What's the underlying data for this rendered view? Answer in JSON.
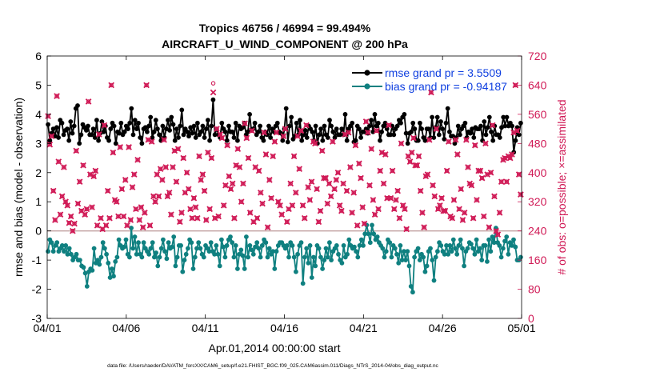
{
  "chart_data": {
    "type": "line",
    "title": "Tropics 46756 / 46994 = 99.494%",
    "subtitle": "AIRCRAFT_U_WIND_COMPONENT @ 200 hPa",
    "xlabel": "Apr.01,2014 00:00:00 start",
    "ylabel_left": "rmse and bias (model - observation)",
    "ylabel_right": "# of obs: o=possible; ×=assimilated",
    "footer": "data file: /Users/raeder/DAI/ATM_forcXX/CAM6_setup/f.e21.FHIST_BGC.f09_025.CAM6assim.011/Diags_NTrS_2014-04/obs_diag_output.nc",
    "xlim": [
      0,
      30
    ],
    "ylim_left": [
      -3,
      6
    ],
    "ylim_right": [
      0,
      720
    ],
    "x_ticks": [
      0,
      5,
      10,
      15,
      20,
      25,
      30
    ],
    "x_tick_labels": [
      "04/01",
      "04/06",
      "04/11",
      "04/16",
      "04/21",
      "04/26",
      "05/01"
    ],
    "y_ticks_left": [
      -3,
      -2,
      -1,
      0,
      1,
      2,
      3,
      4,
      5,
      6
    ],
    "y_tick_labels_left": [
      "-3",
      "-2",
      "-1",
      "0",
      "1",
      "2",
      "3",
      "4",
      "5",
      "6"
    ],
    "y_ticks_right": [
      0,
      80,
      160,
      240,
      320,
      400,
      480,
      560,
      640,
      720
    ],
    "y_tick_labels_right": [
      "0",
      "80",
      "160",
      "240",
      "320",
      "400",
      "480",
      "560",
      "640",
      "720"
    ],
    "colors": {
      "rmse": "#000000",
      "bias": "#0f8080",
      "obs": "#d01a56",
      "zero_line": "#c4a4a4",
      "legend_text": "#1040e0",
      "right_axis": "#d01a56"
    },
    "legend": {
      "rmse_label": "rmse grand pr = 3.5509",
      "bias_label": "bias grand pr = -0.94187",
      "position": "top-right"
    },
    "series": [
      {
        "name": "rmse",
        "axis": "left",
        "values": [
          3.65,
          3.1,
          3.35,
          3.5,
          3.25,
          3.55,
          3.2,
          3.8,
          3.7,
          3.3,
          3.45,
          3.5,
          3.1,
          3.75,
          3.35,
          3.6,
          4.2,
          4.3,
          3.0,
          3.3,
          3.65,
          3.55,
          3.45,
          3.6,
          3.3,
          3.3,
          3.5,
          3.2,
          3.8,
          3.1,
          3.35,
          3.75,
          3.4,
          3.6,
          3.2,
          3.1,
          3.5,
          3.7,
          3.6,
          3.0,
          3.4,
          3.35,
          3.7,
          3.3,
          3.4,
          3.6,
          3.5,
          3.7,
          4.2,
          3.3,
          3.8,
          3.5,
          3.7,
          3.2,
          3.0,
          3.5,
          3.55,
          3.4,
          3.6,
          3.9,
          3.2,
          3.4,
          3.8,
          3.5,
          3.3,
          3.1,
          3.6,
          3.2,
          3.5,
          3.8,
          3.45,
          3.9,
          3.65,
          3.1,
          3.5,
          3.2,
          3.6,
          4.15,
          3.3,
          3.5,
          3.4,
          3.25,
          3.55,
          3.35,
          3.6,
          3.2,
          3.7,
          3.3,
          3.4,
          3.6,
          3.2,
          3.5,
          3.8,
          3.1,
          3.6,
          4.5,
          3.3,
          3.5,
          3.3,
          3.2,
          3.7,
          3.5,
          3.4,
          3.1,
          3.6,
          3.4,
          3.4,
          3.2,
          3.7,
          3.1,
          3.6,
          3.5,
          3.55,
          3.7,
          3.3,
          3.4,
          4.0,
          3.45,
          3.5,
          3.7,
          3.3,
          3.4,
          3.6,
          3.2,
          3.1,
          3.4,
          3.3,
          3.6,
          3.2,
          3.5,
          3.4,
          3.6,
          3.7,
          3.4,
          3.35,
          3.1,
          3.5,
          4.2,
          3.05,
          3.6,
          3.9,
          3.15,
          3.25,
          3.7,
          3.3,
          3.8,
          3.1,
          3.3,
          3.45,
          3.2,
          3.6,
          3.5,
          3.4,
          3.1,
          3.6,
          3.0,
          3.3,
          3.5,
          3.1,
          3.6,
          3.3,
          3.2,
          3.8,
          3.6,
          3.4,
          3.2,
          3.5,
          3.3,
          3.3,
          3.5,
          3.3,
          4.0,
          3.1,
          3.5,
          3.6,
          3.7,
          3.05,
          3.1,
          3.6,
          3.5,
          3.2,
          3.4,
          3.4,
          3.5,
          3.35,
          3.6,
          3.8,
          3.4,
          4.0,
          3.6,
          3.7,
          3.1,
          3.4,
          3.6,
          3.7,
          3.5,
          3.3,
          3.3,
          3.6,
          3.3,
          3.5,
          3.6,
          3.8,
          3.7,
          3.9,
          4.0,
          3.35,
          3.0,
          3.35,
          3.4,
          3.7,
          3.5,
          3.1,
          3.1,
          3.7,
          3.5,
          3.2,
          3.1,
          3.5,
          3.5,
          3.2,
          3.9,
          3.2,
          3.55,
          3.9,
          3.3,
          3.75,
          3.5,
          3.15,
          3.7,
          4.2,
          3.4,
          3.25,
          3.25,
          3.0,
          3.2,
          3.6,
          3.3,
          3.5,
          3.6,
          3.7,
          3.2,
          3.4,
          3.35,
          3.5,
          3.2,
          3.55,
          3.5,
          3.5,
          3.6,
          3.1,
          3.75,
          3.3,
          3.55,
          3.9,
          3.4,
          3.1,
          3.6,
          3.3,
          3.3,
          3.2,
          3.55,
          3.9,
          3.6,
          3.9,
          3.6,
          3.7,
          3.6,
          2.7,
          3.1,
          3.55,
          3.3,
          3.7
        ]
      },
      {
        "name": "bias",
        "axis": "left",
        "values": [
          -0.7,
          -0.3,
          -0.4,
          -0.7,
          -0.5,
          -0.4,
          -0.7,
          -0.6,
          -0.5,
          -0.7,
          -0.5,
          -0.8,
          -0.6,
          -0.8,
          -1.0,
          -0.9,
          -0.8,
          -1.0,
          -1.0,
          -1.2,
          -1.25,
          -1.45,
          -1.9,
          -1.4,
          -1.3,
          -1.35,
          -0.6,
          -1.1,
          -1.0,
          -1.15,
          -0.9,
          -0.4,
          -0.6,
          -0.8,
          -1.1,
          -1.6,
          -1.3,
          -1.55,
          -1.05,
          -0.9,
          -0.3,
          -0.5,
          -0.6,
          -0.55,
          -0.3,
          -0.8,
          -0.9,
          0.1,
          -0.6,
          -0.2,
          -0.8,
          -0.4,
          -0.8,
          -0.9,
          -0.4,
          -0.6,
          -0.7,
          -0.8,
          -0.6,
          -0.4,
          -0.9,
          -0.75,
          -1.2,
          -0.9,
          -0.6,
          -0.3,
          -0.7,
          -0.95,
          -0.4,
          -0.6,
          -0.55,
          -0.2,
          -1.2,
          -0.9,
          -0.5,
          -0.5,
          -1.4,
          -1.0,
          -0.8,
          -0.6,
          -0.3,
          -0.4,
          -1.3,
          -0.9,
          -0.6,
          -0.4,
          -0.6,
          -0.8,
          -0.9,
          -0.5,
          -0.6,
          -0.7,
          -0.4,
          -0.7,
          -0.8,
          -0.5,
          -0.8,
          -1.2,
          -0.3,
          -0.55,
          -0.9,
          -0.5,
          -0.3,
          -0.2,
          -0.4,
          -0.9,
          -0.5,
          -1.3,
          -0.8,
          -0.65,
          -0.85,
          -1.3,
          -0.2,
          -0.9,
          -0.5,
          -0.65,
          -0.8,
          -0.55,
          -0.4,
          -0.6,
          -0.9,
          -0.5,
          -0.3,
          -0.4,
          -0.9,
          -0.6,
          -0.8,
          -0.7,
          -1.3,
          -0.7,
          -0.5,
          -0.4,
          -0.4,
          -0.5,
          -0.6,
          -0.5,
          -0.9,
          -0.4,
          -0.5,
          -0.9,
          -1.4,
          -0.8,
          -0.5,
          -0.4,
          -1.8,
          -0.9,
          -0.6,
          -1.1,
          -0.5,
          -1.6,
          -0.9,
          -1.2,
          -0.5,
          -0.6,
          -0.9,
          -1.3,
          -1.0,
          -0.6,
          -0.9,
          -0.4,
          -1.0,
          -0.7,
          -0.6,
          -0.5,
          -0.8,
          -1.0,
          -1.1,
          -0.5,
          -0.9,
          -0.8,
          -0.3,
          -0.5,
          -0.6,
          -0.55,
          -0.7,
          -0.9,
          -0.5,
          -0.3,
          -0.5,
          -0.1,
          0.2,
          -0.1,
          -0.4,
          0.2,
          -0.1,
          -0.3,
          -0.2,
          -0.4,
          -0.5,
          -0.6,
          -0.9,
          -0.7,
          -0.3,
          -0.4,
          -0.9,
          -0.5,
          -0.6,
          -0.8,
          -1.1,
          -0.5,
          -1.0,
          -0.7,
          -1.0,
          -0.7,
          -1.2,
          -1.9,
          -2.1,
          -0.9,
          -0.7,
          -0.6,
          -1.0,
          -0.8,
          -0.9,
          -1.4,
          -1.2,
          -0.7,
          -0.6,
          -1.0,
          -1.7,
          -0.9,
          -0.7,
          -0.4,
          -0.5,
          -0.7,
          -0.8,
          -0.5,
          -0.8,
          -0.5,
          -0.7,
          -0.3,
          -0.6,
          -0.8,
          -0.5,
          -0.3,
          -0.6,
          -1.2,
          -0.7,
          -0.6,
          -0.4,
          -0.45,
          -0.6,
          -0.8,
          -0.3,
          -0.7,
          -0.6,
          -1.0,
          -0.5,
          -0.5,
          -1.05,
          -0.3,
          -0.7,
          -0.2,
          -0.4,
          0.1,
          -0.4,
          -0.5,
          -0.9,
          -0.6,
          -0.35,
          -0.2,
          -0.8,
          -0.4,
          -0.5,
          -0.3,
          -0.55,
          -1.0,
          -1.0,
          -0.9
        ]
      },
      {
        "name": "possible",
        "axis": "right",
        "marker": "circle",
        "values": [
          555,
          477,
          500,
          350,
          270,
          610,
          430,
          285,
          335,
          415,
          320,
          310,
          262,
          280,
          240,
          260,
          460,
          315,
          375,
          295,
          420,
          285,
          300,
          595,
          395,
          305,
          390,
          405,
          255,
          505,
          275,
          245,
          530,
          255,
          350,
          275,
          640,
          455,
          325,
          320,
          280,
          470,
          355,
          280,
          380,
          255,
          470,
          270,
          360,
          395,
          300,
          435,
          270,
          305,
          250,
          290,
          640,
          490,
          255,
          485,
          335,
          320,
          395,
          335,
          410,
          380,
          490,
          415,
          335,
          345,
          285,
          415,
          460,
          375,
          465,
          265,
          290,
          440,
          345,
          400,
          355,
          300,
          275,
          330,
          305,
          275,
          445,
          380,
          395,
          350,
          270,
          455,
          300,
          440,
          645,
          275,
          520,
          280,
          505,
          495,
          310,
          365,
          475,
          390,
          355,
          370,
          275,
          420,
          465,
          415,
          320,
          370,
          535,
          495,
          440,
          290,
          515,
          265,
          415,
          275,
          405,
          345,
          315,
          510,
          450,
          250,
          380,
          330,
          445,
          485,
          510,
          320,
          310,
          285,
          500,
          520,
          265,
          300,
          370,
          310,
          445,
          345,
          500,
          410,
          515,
          310,
          275,
          530,
          360,
          325,
          375,
          485,
          480,
          355,
          265,
          295,
          460,
          385,
          385,
          315,
          370,
          335,
          485,
          355,
          380,
          400,
          310,
          295,
          370,
          505,
          350,
          510,
          415,
          290,
          345,
          475,
          255,
          425,
          385,
          305,
          260,
          540,
          510,
          365,
          465,
          325,
          285,
          515,
          300,
          405,
          455,
          370,
          450,
          330,
          530,
          330,
          405,
          300,
          325,
          350,
          275,
          480,
          310,
          300,
          245,
          445,
          430,
          455,
          495,
          420,
          420,
          445,
          350,
          290,
          250,
          390,
          395,
          490,
          620,
          365,
          335,
          520,
          300,
          310,
          330,
          295,
          295,
          405,
          485,
          280,
          275,
          325,
          490,
          450,
          300,
          355,
          270,
          290,
          490,
          415,
          370,
          365,
          275,
          475,
          325,
          405,
          405,
          385,
          280,
          480,
          395,
          250,
          400,
          530,
          335,
          240,
          230,
          290,
          375,
          435,
          440,
          375,
          445,
          440,
          450,
          510,
          640,
          515,
          395,
          340
        ]
      },
      {
        "name": "assimilated",
        "axis": "right",
        "marker": "x",
        "values": [
          555,
          477,
          500,
          350,
          270,
          610,
          430,
          285,
          335,
          415,
          320,
          310,
          262,
          280,
          240,
          260,
          460,
          315,
          375,
          295,
          420,
          285,
          300,
          595,
          395,
          305,
          390,
          405,
          255,
          505,
          275,
          245,
          530,
          255,
          350,
          275,
          640,
          455,
          325,
          320,
          280,
          470,
          355,
          280,
          380,
          255,
          470,
          270,
          360,
          395,
          300,
          435,
          270,
          305,
          250,
          290,
          640,
          490,
          255,
          485,
          335,
          320,
          395,
          335,
          410,
          380,
          490,
          415,
          335,
          345,
          285,
          415,
          460,
          375,
          465,
          265,
          290,
          440,
          345,
          400,
          355,
          300,
          275,
          330,
          305,
          275,
          445,
          380,
          395,
          350,
          270,
          455,
          300,
          440,
          620,
          275,
          520,
          280,
          505,
          495,
          310,
          365,
          475,
          390,
          355,
          370,
          275,
          420,
          465,
          415,
          320,
          370,
          535,
          495,
          440,
          290,
          515,
          265,
          415,
          275,
          405,
          345,
          315,
          510,
          450,
          250,
          380,
          330,
          445,
          485,
          510,
          320,
          310,
          285,
          500,
          520,
          265,
          300,
          370,
          310,
          445,
          345,
          500,
          410,
          515,
          310,
          275,
          530,
          360,
          325,
          375,
          485,
          480,
          355,
          265,
          295,
          460,
          385,
          385,
          315,
          370,
          335,
          485,
          355,
          380,
          400,
          310,
          295,
          370,
          505,
          350,
          510,
          415,
          290,
          345,
          475,
          255,
          425,
          385,
          305,
          260,
          540,
          510,
          365,
          465,
          325,
          285,
          515,
          300,
          405,
          455,
          370,
          450,
          330,
          530,
          330,
          405,
          300,
          325,
          350,
          275,
          480,
          310,
          300,
          245,
          445,
          430,
          455,
          495,
          420,
          420,
          445,
          350,
          290,
          250,
          390,
          395,
          490,
          620,
          365,
          335,
          520,
          300,
          310,
          330,
          295,
          295,
          405,
          485,
          280,
          275,
          325,
          490,
          450,
          300,
          355,
          270,
          290,
          490,
          415,
          370,
          365,
          275,
          475,
          325,
          405,
          405,
          385,
          280,
          480,
          395,
          250,
          400,
          530,
          335,
          240,
          230,
          290,
          375,
          435,
          440,
          375,
          445,
          440,
          450,
          510,
          640,
          515,
          395,
          340
        ]
      }
    ]
  }
}
